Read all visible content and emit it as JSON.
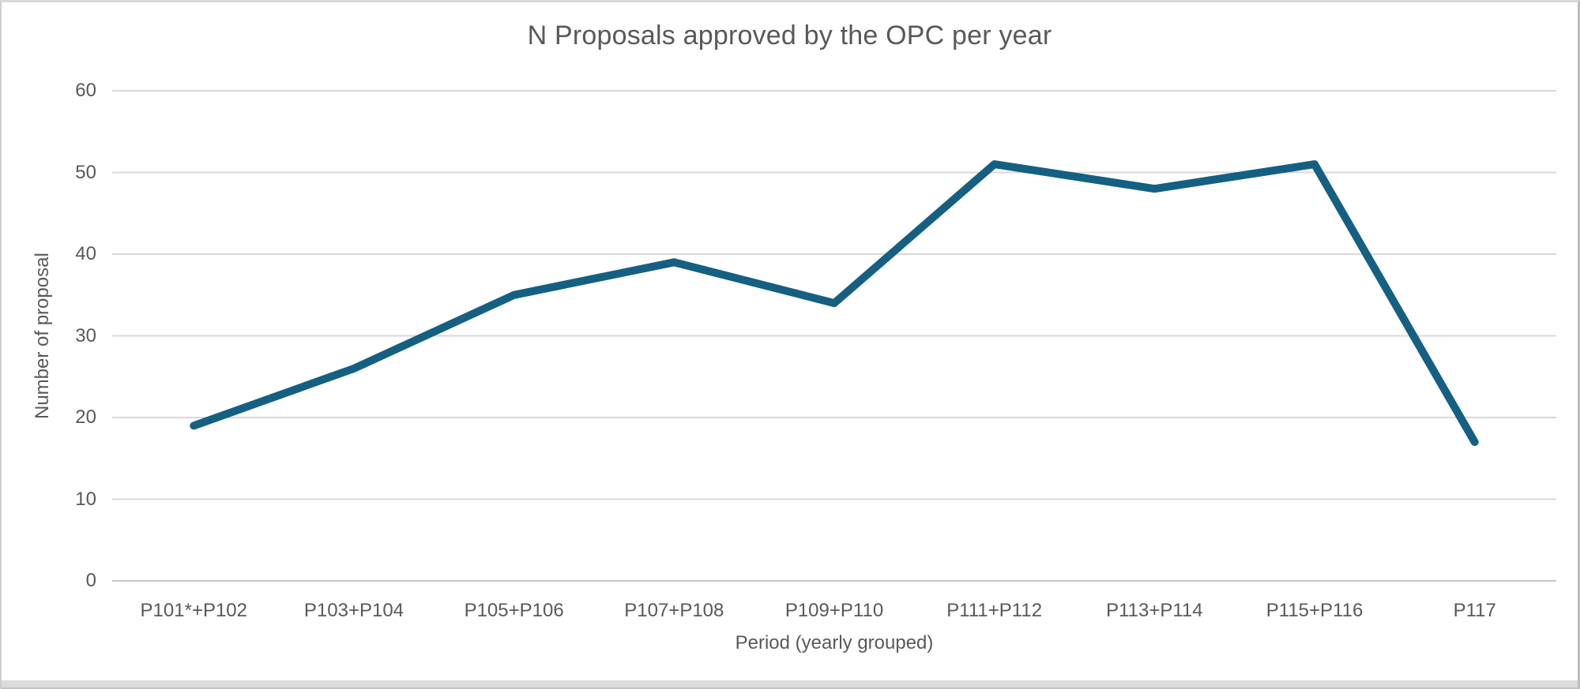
{
  "window": {
    "background": "#ffffff",
    "frame_border_color": "#cfcfcf",
    "bottom_band_color": "#dcdcdc"
  },
  "chart_data": {
    "type": "line",
    "title": "N Proposals approved by the OPC per year",
    "xlabel": "Period (yearly grouped)",
    "ylabel": "Number of proposal",
    "categories": [
      "P101*+P102",
      "P103+P104",
      "P105+P106",
      "P107+P108",
      "P109+P110",
      "P111+P112",
      "P113+P114",
      "P115+P116",
      "P117"
    ],
    "values": [
      19,
      26,
      35,
      39,
      34,
      51,
      48,
      51,
      17
    ],
    "ylim": [
      0,
      60
    ],
    "yticks": [
      0,
      10,
      20,
      30,
      40,
      50,
      60
    ],
    "grid": true,
    "legend_position": "none",
    "line_color": "#156082",
    "line_width": 10,
    "gridline_color": "#d9d9d9",
    "axis_line_color": "#c6c6c6",
    "text_color": "#595959"
  }
}
